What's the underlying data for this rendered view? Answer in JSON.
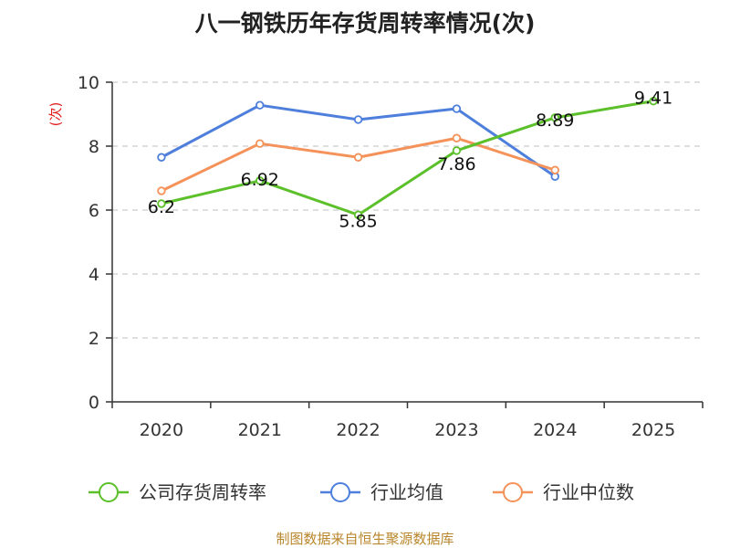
{
  "chart_data": {
    "type": "line",
    "title": "八一钢铁历年存货周转率情况(次)",
    "ylabel": "(次)",
    "categories": [
      "2020",
      "2021",
      "2022",
      "2023",
      "2024",
      "2025"
    ],
    "ylim": [
      0,
      10
    ],
    "yticks": [
      0,
      2,
      4,
      6,
      8,
      10
    ],
    "grid": true,
    "legend_position": "bottom",
    "series": [
      {
        "name": "公司存货周转率",
        "color": "#5cc02a",
        "values": [
          6.2,
          6.92,
          5.85,
          7.86,
          8.89,
          9.41
        ],
        "labels": [
          "6.2",
          "6.92",
          "5.85",
          "7.86",
          "8.89",
          "9.41"
        ]
      },
      {
        "name": "行业均值",
        "color": "#4e7fdc",
        "values": [
          7.65,
          9.28,
          8.83,
          9.17,
          7.05,
          null
        ]
      },
      {
        "name": "行业中位数",
        "color": "#f5925a",
        "values": [
          6.6,
          8.08,
          7.65,
          8.25,
          7.25,
          null
        ]
      }
    ]
  },
  "source": "制图数据来自恒生聚源数据库"
}
